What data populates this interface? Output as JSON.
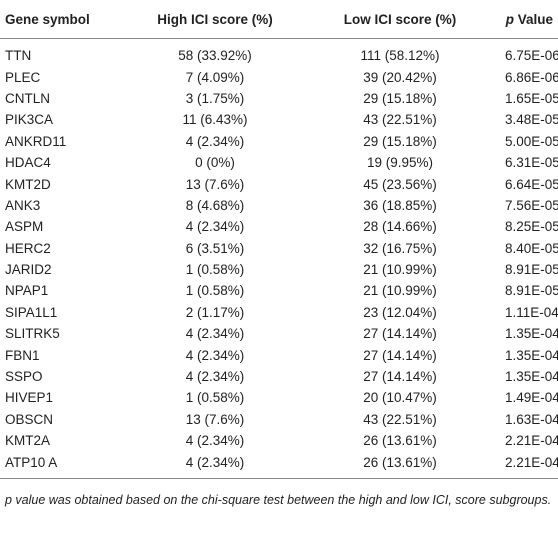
{
  "table": {
    "header": [
      "Gene symbol",
      "High ICI score (%)",
      "Low ICI score (%)",
      [
        "p",
        "Value"
      ]
    ],
    "rows": [
      [
        "TTN",
        "58 (33.92%)",
        "111 (58.12%)",
        "6.75E-06"
      ],
      [
        "PLEC",
        "7 (4.09%)",
        "39 (20.42%)",
        "6.86E-06"
      ],
      [
        "CNTLN",
        "3 (1.75%)",
        "29 (15.18%)",
        "1.65E-05"
      ],
      [
        "PIK3CA",
        "11 (6.43%)",
        "43 (22.51%)",
        "3.48E-05"
      ],
      [
        "ANKRD11",
        "4 (2.34%)",
        "29 (15.18%)",
        "5.00E-05"
      ],
      [
        "HDAC4",
        "0 (0%)",
        "19 (9.95%)",
        "6.31E-05"
      ],
      [
        "KMT2D",
        "13 (7.6%)",
        "45 (23.56%)",
        "6.64E-05"
      ],
      [
        "ANK3",
        "8 (4.68%)",
        "36 (18.85%)",
        "7.56E-05"
      ],
      [
        "ASPM",
        "4 (2.34%)",
        "28 (14.66%)",
        "8.25E-05"
      ],
      [
        "HERC2",
        "6 (3.51%)",
        "32 (16.75%)",
        "8.40E-05"
      ],
      [
        "JARID2",
        "1 (0.58%)",
        "21 (10.99%)",
        "8.91E-05"
      ],
      [
        "NPAP1",
        "1 (0.58%)",
        "21 (10.99%)",
        "8.91E-05"
      ],
      [
        "SIPA1L1",
        "2 (1.17%)",
        "23 (12.04%)",
        "1.11E-04"
      ],
      [
        "SLITRK5",
        "4 (2.34%)",
        "27 (14.14%)",
        "1.35E-04"
      ],
      [
        "FBN1",
        "4 (2.34%)",
        "27 (14.14%)",
        "1.35E-04"
      ],
      [
        "SSPO",
        "4 (2.34%)",
        "27 (14.14%)",
        "1.35E-04"
      ],
      [
        "HIVEP1",
        "1 (0.58%)",
        "20 (10.47%)",
        "1.49E-04"
      ],
      [
        "OBSCN",
        "13 (7.6%)",
        "43 (22.51%)",
        "1.63E-04"
      ],
      [
        "KMT2A",
        "4 (2.34%)",
        "26 (13.61%)",
        "2.21E-04"
      ],
      [
        "ATP10 A",
        "4 (2.34%)",
        "26 (13.61%)",
        "2.21E-04"
      ]
    ],
    "footnote": "p value was obtained based on the chi-square test between the high and low ICI, score subgroups."
  }
}
